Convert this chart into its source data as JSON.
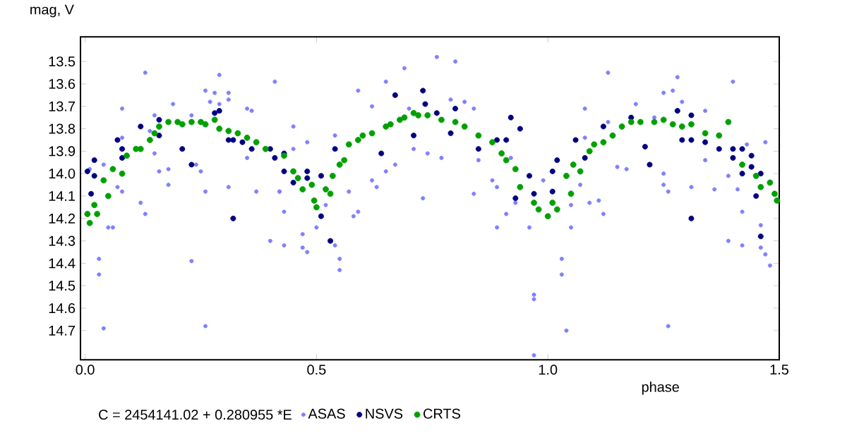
{
  "chart_data": {
    "type": "scatter",
    "xlabel": "phase",
    "ylabel": "mag, V",
    "annotations": [
      "C = 2454141.02 + 0.280955 *E"
    ],
    "xlim": [
      -0.01,
      1.5
    ],
    "ylim": [
      14.83,
      13.39
    ],
    "xticks": [
      {
        "value": 0,
        "label": "0.0"
      },
      {
        "value": 0.5,
        "label": "0.5"
      },
      {
        "value": 1,
        "label": "1.0"
      },
      {
        "value": 1.5,
        "label": "1.5"
      }
    ],
    "yticks": [
      13.5,
      13.6,
      13.7,
      13.8,
      13.9,
      {
        "value": 14.0,
        "label": "14.0"
      },
      14.1,
      14.2,
      14.3,
      14.4,
      14.5,
      14.6,
      14.7
    ],
    "grid": false,
    "legend": "bottom",
    "marker": "circle",
    "series": [
      {
        "name": "ASAS",
        "color": "#8080ff",
        "x": [
          0.01,
          0.04,
          0.04,
          0.03,
          0.03,
          0.05,
          0.06,
          0.08,
          0.08,
          0.07,
          0.08,
          0.12,
          0.13,
          0.13,
          0.14,
          0.15,
          0.15,
          0.16,
          0.18,
          0.18,
          0.19,
          0.23,
          0.23,
          0.24,
          0.25,
          0.26,
          0.26,
          0.26,
          0.27,
          0.28,
          0.29,
          0.29,
          0.31,
          0.31,
          0.31,
          0.35,
          0.35,
          0.36,
          0.37,
          0.4,
          0.41,
          0.42,
          0.42,
          0.43,
          0.43,
          0.45,
          0.45,
          0.47,
          0.47,
          0.48,
          0.48,
          0.5,
          0.52,
          0.54,
          0.54,
          0.55,
          0.55,
          0.57,
          0.58,
          0.59,
          0.59,
          0.62,
          0.62,
          0.63,
          0.65,
          0.65,
          0.67,
          0.69,
          0.7,
          0.71,
          0.73,
          0.76,
          0.8,
          0.74,
          0.77,
          0.79,
          0.82,
          0.84,
          0.84,
          0.85,
          0.88,
          0.89,
          0.91,
          0.92,
          0.89,
          0.93,
          0.96,
          0.97,
          0.97,
          0.97,
          0.99,
          1.03,
          1.03,
          1.04,
          1.05,
          1.05,
          1.07,
          1.08,
          1.08,
          1.09,
          1.11,
          1.12,
          1.13,
          1.13,
          1.15,
          1.17,
          1.19,
          1.23,
          1.25,
          1.25,
          1.26,
          1.26,
          1.25,
          1.27,
          1.28,
          1.29,
          1.31,
          1.34,
          1.34,
          1.36,
          1.39,
          1.39,
          1.4,
          1.41,
          1.42,
          1.42,
          1.43,
          1.46,
          1.46,
          1.47,
          1.47,
          1.48
        ],
        "values": [
          13.98,
          13.96,
          14.69,
          14.38,
          14.45,
          14.24,
          14.24,
          13.71,
          13.84,
          14.06,
          14.08,
          14.13,
          13.55,
          14.18,
          13.81,
          13.74,
          13.91,
          13.99,
          13.98,
          14.05,
          13.69,
          13.74,
          14.39,
          13.96,
          13.99,
          14.08,
          14.68,
          13.63,
          13.68,
          13.64,
          13.56,
          13.69,
          13.67,
          13.64,
          14.06,
          13.71,
          13.93,
          13.72,
          14.08,
          14.3,
          13.59,
          14.08,
          14.08,
          14.32,
          14.17,
          13.79,
          13.89,
          14.27,
          14.33,
          13.86,
          14.35,
          14.24,
          14.14,
          13.83,
          14.32,
          14.38,
          14.43,
          14.08,
          14.19,
          13.63,
          14.17,
          14.03,
          13.7,
          14.06,
          13.59,
          13.99,
          13.96,
          13.53,
          13.71,
          13.89,
          14.11,
          13.48,
          13.5,
          13.91,
          13.93,
          13.67,
          13.68,
          13.71,
          14.09,
          13.94,
          14.03,
          14.06,
          14.18,
          13.93,
          14.24,
          14.13,
          14.24,
          14.81,
          14.56,
          14.54,
          14.03,
          14.38,
          14.45,
          14.7,
          14.24,
          14.14,
          14.05,
          13.71,
          13.84,
          14.13,
          14.12,
          14.18,
          13.55,
          13.77,
          13.97,
          13.98,
          13.69,
          13.75,
          14.05,
          14.0,
          14.08,
          14.68,
          13.64,
          13.63,
          13.57,
          13.68,
          14.06,
          13.72,
          13.94,
          14.07,
          14.01,
          14.3,
          13.59,
          14.07,
          14.17,
          14.32,
          13.87,
          14.33,
          14.23,
          13.86,
          14.36,
          14.41
        ]
      },
      {
        "name": "NSVS",
        "color": "#000080",
        "x": [
          0.005,
          0.02,
          0.013,
          0.02,
          0.07,
          0.08,
          0.08,
          0.12,
          0.16,
          0.16,
          0.21,
          0.23,
          0.28,
          0.29,
          0.31,
          0.32,
          0.32,
          0.34,
          0.36,
          0.4,
          0.41,
          0.43,
          0.43,
          0.45,
          0.48,
          0.48,
          0.51,
          0.51,
          0.53,
          0.54,
          0.64,
          0.67,
          0.71,
          0.73,
          0.735,
          0.76,
          0.8,
          0.79,
          0.85,
          0.89,
          0.91,
          0.92,
          0.94,
          0.93,
          0.96,
          0.97,
          1.01,
          1.02,
          1.01,
          1.06,
          1.08,
          1.12,
          1.18,
          1.21,
          1.22,
          1.28,
          1.29,
          1.31,
          1.31,
          1.31,
          1.34,
          1.37,
          1.4,
          1.4,
          1.42,
          1.42,
          1.44,
          1.44,
          1.46,
          1.46,
          1.45
        ],
        "values": [
          13.99,
          13.94,
          14.09,
          14.01,
          13.85,
          13.93,
          13.89,
          13.79,
          13.76,
          13.83,
          13.89,
          13.96,
          13.73,
          13.72,
          13.85,
          13.85,
          14.2,
          13.86,
          13.89,
          13.89,
          13.93,
          13.91,
          13.99,
          14.04,
          13.99,
          14.02,
          14.01,
          14.19,
          14.3,
          13.89,
          13.91,
          13.65,
          13.83,
          13.63,
          13.69,
          13.73,
          13.71,
          13.82,
          13.89,
          13.85,
          13.85,
          13.75,
          13.8,
          14.11,
          14.01,
          14.09,
          13.99,
          13.94,
          14.08,
          13.85,
          13.93,
          13.79,
          13.75,
          13.88,
          13.96,
          13.72,
          13.85,
          13.74,
          13.85,
          14.2,
          13.86,
          13.89,
          13.89,
          13.93,
          13.89,
          14.0,
          13.92,
          13.97,
          14.28,
          14.0,
          14.1
        ]
      },
      {
        "name": "CRTS",
        "color": "#00a000",
        "x": [
          0.005,
          0.01,
          0.02,
          0.026,
          0.04,
          0.05,
          0.06,
          0.08,
          0.09,
          0.11,
          0.12,
          0.14,
          0.15,
          0.16,
          0.18,
          0.2,
          0.21,
          0.23,
          0.25,
          0.26,
          0.28,
          0.29,
          0.31,
          0.33,
          0.35,
          0.37,
          0.39,
          0.43,
          0.45,
          0.46,
          0.47,
          0.49,
          0.495,
          0.5,
          0.52,
          0.53,
          0.535,
          0.55,
          0.56,
          0.57,
          0.59,
          0.6,
          0.62,
          0.65,
          0.66,
          0.68,
          0.69,
          0.71,
          0.72,
          0.74,
          0.77,
          0.8,
          0.82,
          0.85,
          0.88,
          0.9,
          0.91,
          0.93,
          0.94,
          0.97,
          0.98,
          1.0,
          1.01,
          1.02,
          1.04,
          1.05,
          1.055,
          1.07,
          1.09,
          1.1,
          1.12,
          1.14,
          1.16,
          1.18,
          1.2,
          1.23,
          1.25,
          1.27,
          1.29,
          1.31,
          1.34,
          1.37,
          1.39,
          1.42,
          1.45,
          1.46,
          1.48,
          1.49,
          1.495
        ],
        "values": [
          14.18,
          14.22,
          14.14,
          14.18,
          14.03,
          14.1,
          13.98,
          14.0,
          13.92,
          13.89,
          13.89,
          13.85,
          13.82,
          13.79,
          13.77,
          13.77,
          13.78,
          13.77,
          13.77,
          13.78,
          13.76,
          13.8,
          13.81,
          13.82,
          13.84,
          13.86,
          13.89,
          13.92,
          13.99,
          14.02,
          14.07,
          14.05,
          14.12,
          14.15,
          14.07,
          14.09,
          14.01,
          13.96,
          13.94,
          13.87,
          13.85,
          13.83,
          13.82,
          13.79,
          13.78,
          13.76,
          13.75,
          13.73,
          13.74,
          13.74,
          13.76,
          13.77,
          13.79,
          13.83,
          13.86,
          13.91,
          13.94,
          13.98,
          14.06,
          14.13,
          14.16,
          14.19,
          14.13,
          14.16,
          14.01,
          14.09,
          13.96,
          13.99,
          13.9,
          13.87,
          13.86,
          13.83,
          13.79,
          13.77,
          13.77,
          13.77,
          13.76,
          13.78,
          13.79,
          13.78,
          13.82,
          13.83,
          13.77,
          13.96,
          14.01,
          14.06,
          14.04,
          14.09,
          14.12
        ]
      }
    ]
  }
}
